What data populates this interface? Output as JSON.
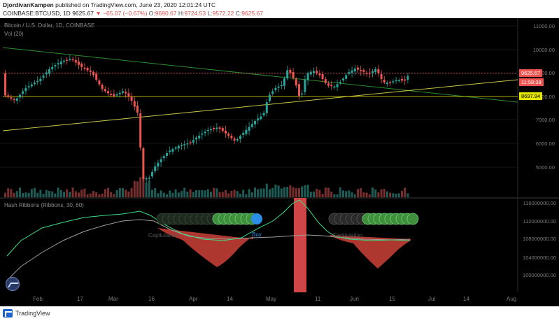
{
  "header": {
    "author": "DjordivanKampen",
    "published_text": "published on TradingView.com, June 23, 2020 12:01:24 UTC",
    "symbol": "COINBASE:BTCUSD, 1D",
    "last_price": "9625.67",
    "change": "▼ −65.07 (−0.67%)",
    "o_label": "O:",
    "o_value": "9690.67",
    "h_label": "H:",
    "h_value": "9724.53",
    "l_label": "L:",
    "l_value": "9572.22",
    "c_label": "C:",
    "c_value": "9625.67"
  },
  "main_panel": {
    "title": "Bitcoin / U.S. Dollar, 1D, COINBASE",
    "volume_label": "Vol (20)",
    "price_ticks": [
      "11000.00",
      "10000.00",
      "9000.00",
      "8000.00",
      "7000.00",
      "6000.00",
      "5000.00"
    ],
    "last_price_tag": "9625.67",
    "countdown_tag": "11:58:38",
    "level_tag": "8697.94",
    "colors": {
      "up": "#26a69a",
      "down": "#ef5350",
      "trend_green": "#2e8b2e",
      "trend_yellow": "#c8c84a",
      "level": "#e6e600"
    }
  },
  "indicator_panel": {
    "title": "Hash Ribbons (Ribbons, 30, 60)",
    "ticks": [
      "116000000.00",
      "112000000.00",
      "108000000.00",
      "104000000.00",
      "100000000.00"
    ],
    "annotations": {
      "buy": "Buy",
      "capitulation_left": "Capitulation",
      "capitulation_right": "Capitulation"
    },
    "colors": {
      "fast": "#3ddc84",
      "slow": "#9e9e9e",
      "capitulation_fill": "#c0392b",
      "highlight": "#d04545"
    }
  },
  "xaxis": {
    "labels": [
      "Feb",
      "17",
      "Mar",
      "16",
      "Apr",
      "14",
      "May",
      "11",
      "Jun",
      "15",
      "Jul",
      "14",
      "Aug"
    ]
  },
  "footer": {
    "brand": "TradingView"
  }
}
